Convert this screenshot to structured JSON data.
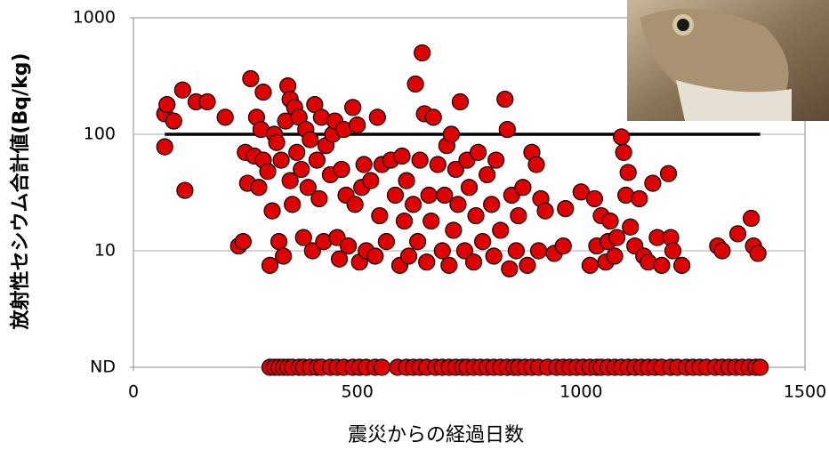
{
  "chart_data": {
    "type": "scatter",
    "x_label": "震災からの経過日数",
    "y_label": "放射性セシウム合計値(Bq/kg)",
    "log_y": true,
    "grid": true,
    "xlim": [
      0,
      1500
    ],
    "xticks": [
      0,
      500,
      1000,
      1500
    ],
    "ylim": [
      1,
      1000
    ],
    "yticks": [
      {
        "value": 1,
        "label": "ND"
      },
      10,
      100,
      1000
    ],
    "reference_line": {
      "y": 100,
      "x": [
        70,
        1400
      ]
    },
    "series": [
      {
        "color": "#e00000",
        "x": [
          70,
          75,
          70,
          90,
          110,
          115,
          140,
          165,
          205,
          235,
          245,
          250,
          255,
          262,
          270,
          275,
          280,
          285,
          290,
          290,
          300,
          305,
          310,
          315,
          320,
          325,
          330,
          335,
          340,
          345,
          350,
          350,
          355,
          360,
          365,
          370,
          375,
          380,
          385,
          390,
          395,
          400,
          405,
          410,
          415,
          420,
          425,
          430,
          440,
          445,
          450,
          455,
          460,
          465,
          470,
          475,
          480,
          490,
          495,
          500,
          505,
          510,
          515,
          520,
          530,
          540,
          545,
          550,
          555,
          565,
          575,
          585,
          595,
          600,
          605,
          610,
          615,
          625,
          630,
          635,
          640,
          645,
          650,
          655,
          660,
          665,
          670,
          680,
          690,
          695,
          700,
          705,
          710,
          715,
          720,
          725,
          730,
          740,
          745,
          750,
          760,
          765,
          770,
          780,
          790,
          800,
          805,
          810,
          820,
          830,
          835,
          840,
          845,
          855,
          860,
          870,
          880,
          890,
          900,
          905,
          910,
          920,
          940,
          960,
          965,
          1000,
          1020,
          1030,
          1035,
          1045,
          1055,
          1060,
          1065,
          1075,
          1080,
          1090,
          1095,
          1100,
          1105,
          1110,
          1120,
          1130,
          1140,
          1150,
          1160,
          1170,
          1180,
          1195,
          1200,
          1205,
          1225,
          1305,
          1315,
          1350,
          1380,
          1385,
          1395
        ],
        "values": [
          150,
          180,
          78,
          130,
          240,
          33,
          190,
          190,
          140,
          11,
          12,
          70,
          38,
          300,
          65,
          140,
          35,
          110,
          230,
          60,
          48,
          7.5,
          22,
          100,
          85,
          12,
          60,
          9,
          130,
          260,
          200,
          40,
          25,
          170,
          70,
          140,
          50,
          13,
          110,
          35,
          90,
          10,
          180,
          60,
          28,
          140,
          12,
          80,
          45,
          100,
          130,
          13,
          8.5,
          50,
          110,
          30,
          11,
          170,
          25,
          120,
          8,
          35,
          55,
          10,
          40,
          9,
          140,
          20,
          55,
          12,
          60,
          30,
          7.5,
          65,
          18,
          40,
          9,
          25,
          270,
          12,
          60,
          500,
          150,
          8,
          30,
          18,
          140,
          55,
          10,
          30,
          80,
          7.5,
          100,
          15,
          50,
          25,
          190,
          10,
          60,
          35,
          8,
          20,
          70,
          12,
          45,
          25,
          9,
          60,
          15,
          200,
          110,
          7,
          30,
          10,
          20,
          35,
          7.5,
          70,
          55,
          10,
          28,
          22,
          9.5,
          11,
          23,
          32,
          7.5,
          28,
          11,
          20,
          8,
          12,
          18,
          9,
          13,
          95,
          70,
          30,
          47,
          16,
          11,
          28,
          9,
          8,
          38,
          13,
          7.5,
          46,
          13,
          10,
          7.5,
          11,
          10,
          14,
          19,
          11,
          9.5
        ]
      }
    ],
    "nd_points": {
      "color": "#e00000",
      "x": [
        305,
        315,
        325,
        335,
        345,
        355,
        370,
        380,
        395,
        410,
        420,
        440,
        455,
        470,
        490,
        505,
        520,
        540,
        555,
        590,
        610,
        625,
        640,
        655,
        675,
        690,
        705,
        720,
        735,
        745,
        760,
        775,
        790,
        805,
        820,
        835,
        850,
        860,
        875,
        890,
        905,
        925,
        945,
        960,
        975,
        990,
        1005,
        1020,
        1035,
        1045,
        1060,
        1075,
        1090,
        1105,
        1120,
        1135,
        1150,
        1165,
        1180,
        1200,
        1215,
        1235,
        1250,
        1265,
        1280,
        1300,
        1315,
        1330,
        1345,
        1360,
        1375,
        1390,
        1400
      ]
    }
  }
}
